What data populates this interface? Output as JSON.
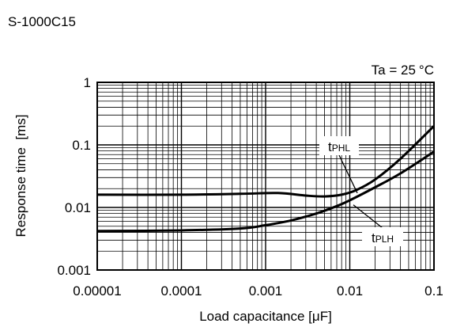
{
  "header": {
    "part_number": "S-1000C15"
  },
  "chart_data": {
    "type": "line",
    "title": "",
    "condition": {
      "label": "Ta = 25",
      "unit": "°C"
    },
    "xlabel": "Load capacitance [μF]",
    "ylabel": "Response time  [ms]",
    "xscale": "log",
    "yscale": "log",
    "xlim": [
      1e-05,
      0.1
    ],
    "ylim": [
      0.001,
      1
    ],
    "xticks": [
      "0.00001",
      "0.0001",
      "0.001",
      "0.01",
      "0.1"
    ],
    "yticks": [
      "0.001",
      "0.01",
      "0.1",
      "1"
    ],
    "grid": true,
    "series": [
      {
        "name_main": "t",
        "name_sub": "PHL",
        "x": [
          1e-05,
          0.0001,
          0.0005,
          0.0014,
          0.003,
          0.005,
          0.008,
          0.012,
          0.02,
          0.04,
          0.1
        ],
        "y": [
          0.016,
          0.016,
          0.0165,
          0.017,
          0.0155,
          0.015,
          0.016,
          0.019,
          0.028,
          0.06,
          0.2
        ]
      },
      {
        "name_main": "t",
        "name_sub": "PLH",
        "x": [
          1e-05,
          0.0001,
          0.0005,
          0.001,
          0.002,
          0.004,
          0.007,
          0.01,
          0.02,
          0.04,
          0.1
        ],
        "y": [
          0.0042,
          0.0043,
          0.0046,
          0.0052,
          0.0062,
          0.008,
          0.0105,
          0.013,
          0.021,
          0.035,
          0.078
        ]
      }
    ]
  }
}
